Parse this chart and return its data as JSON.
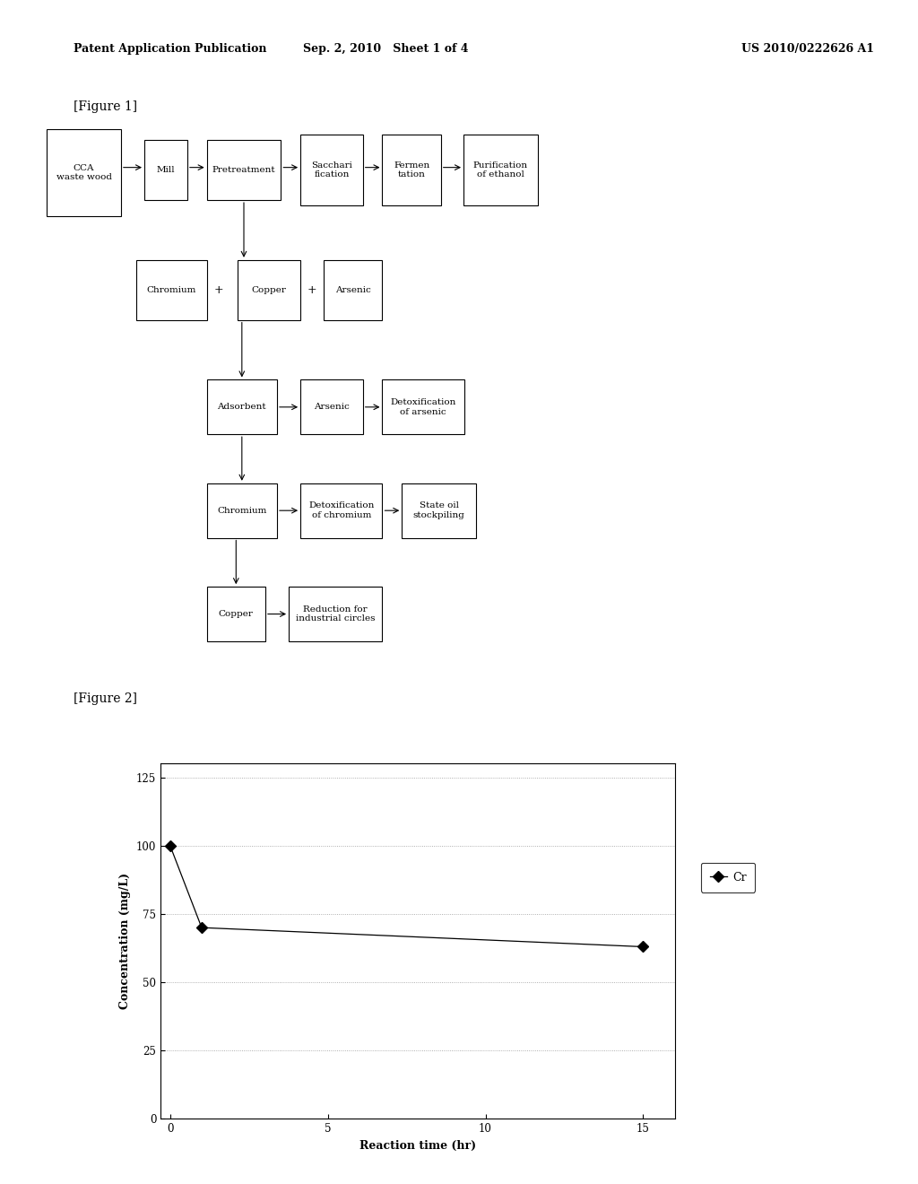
{
  "page_header_left": "Patent Application Publication",
  "page_header_mid": "Sep. 2, 2010   Sheet 1 of 4",
  "page_header_right": "US 2010/0222626 A1",
  "fig1_label": "[Figure 1]",
  "fig2_label": "[Figure 2]",
  "background_color": "#ffffff",
  "chart": {
    "x_data": [
      0,
      1,
      15
    ],
    "y_data": [
      100,
      70,
      63
    ],
    "xlabel": "Reaction time (hr)",
    "ylabel": "Concentration (mg/L)",
    "legend_label": "Cr",
    "xlim": [
      -0.3,
      16
    ],
    "ylim": [
      0,
      130
    ],
    "yticks": [
      0,
      25,
      50,
      75,
      100,
      125
    ],
    "xticks": [
      0,
      5,
      10,
      15
    ],
    "grid_color": "#999999",
    "line_color": "#000000",
    "marker": "D",
    "marker_size": 6,
    "marker_color": "#000000"
  }
}
